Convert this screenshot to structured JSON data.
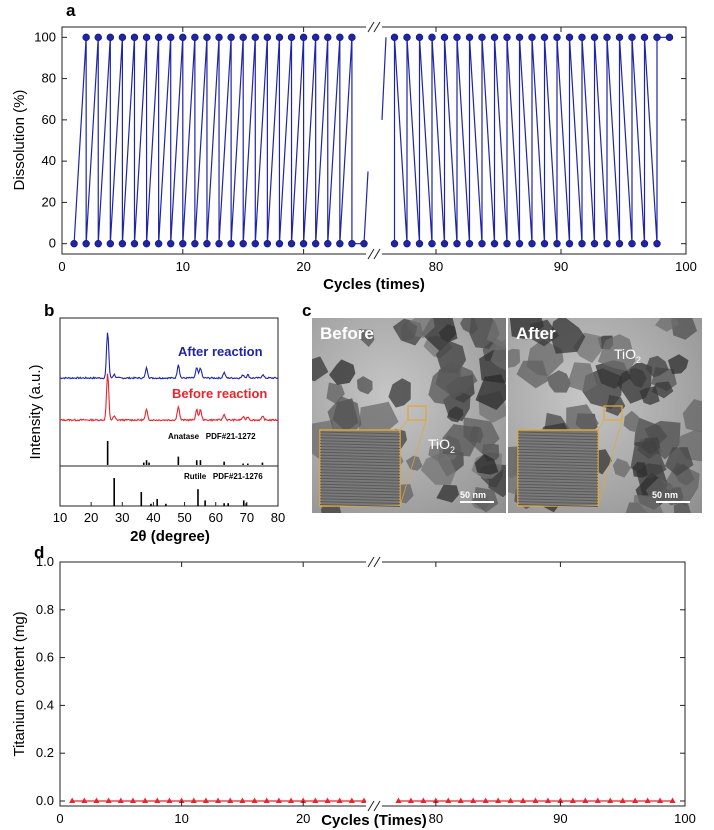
{
  "panels": {
    "a": "a",
    "b": "b",
    "c": "c",
    "d": "d"
  },
  "colors": {
    "blue": "#1f24a8",
    "red": "#e8252c",
    "black": "#000000",
    "inset_border": "#e0a73a"
  },
  "chart_data": [
    {
      "panel": "a",
      "type": "line",
      "xlabel": "Cycles (times)",
      "ylabel": "Dissolution (%)",
      "broken_x_axis": true,
      "segments": [
        {
          "xlim": [
            0,
            25
          ],
          "xticks": [
            0,
            10,
            20
          ]
        },
        {
          "xlim": [
            76,
            100
          ],
          "xticks": [
            80,
            90,
            100
          ]
        }
      ],
      "ylim": [
        -5,
        105
      ],
      "yticks": [
        0,
        20,
        40,
        60,
        80,
        100
      ],
      "series": [
        {
          "description": "sawtooth: points at 0 (x = 1,2,...) and 100 (x = 2,3,...)",
          "x_bottom_seg1": [
            1,
            2,
            3,
            4,
            5,
            6,
            7,
            8,
            9,
            10,
            11,
            12,
            13,
            14,
            15,
            16,
            17,
            18,
            19,
            20,
            21,
            22,
            23,
            24,
            25
          ],
          "x_top_seg1": [
            2,
            3,
            4,
            5,
            6,
            7,
            8,
            9,
            10,
            11,
            12,
            13,
            14,
            15,
            16,
            17,
            18,
            19,
            20,
            21,
            22,
            23,
            24
          ],
          "x_bottom_seg2": [
            77,
            78,
            79,
            80,
            81,
            82,
            83,
            84,
            85,
            86,
            87,
            88,
            89,
            90,
            91,
            92,
            93,
            94,
            95,
            96,
            97,
            98
          ],
          "x_top_seg2": [
            77,
            78,
            79,
            80,
            81,
            82,
            83,
            84,
            85,
            86,
            87,
            88,
            89,
            90,
            91,
            92,
            93,
            94,
            95,
            96,
            97,
            98,
            99
          ],
          "low": 0,
          "high": 100
        }
      ]
    },
    {
      "panel": "b",
      "type": "line",
      "xlabel": "2θ (degree)",
      "ylabel": "Intensity (a.u.)",
      "xlim": [
        10,
        80
      ],
      "xticks": [
        10,
        20,
        30,
        40,
        50,
        60,
        70,
        80
      ],
      "series": [
        {
          "name": "After reaction",
          "peaks": [
            [
              25.3,
              1.0
            ],
            [
              27.4,
              0.08
            ],
            [
              37.8,
              0.22
            ],
            [
              48.0,
              0.3
            ],
            [
              53.9,
              0.22
            ],
            [
              55.1,
              0.22
            ],
            [
              62.7,
              0.12
            ],
            [
              68.8,
              0.07
            ],
            [
              70.3,
              0.07
            ],
            [
              75.1,
              0.07
            ]
          ]
        },
        {
          "name": "Before reaction",
          "peaks": [
            [
              25.3,
              1.0
            ],
            [
              27.4,
              0.08
            ],
            [
              37.8,
              0.22
            ],
            [
              48.0,
              0.3
            ],
            [
              53.9,
              0.22
            ],
            [
              55.1,
              0.22
            ],
            [
              62.7,
              0.12
            ],
            [
              68.8,
              0.07
            ],
            [
              70.3,
              0.07
            ],
            [
              75.1,
              0.07
            ]
          ]
        },
        {
          "name": "Anatase PDF#21-1272",
          "sticks": [
            [
              25.3,
              1.0
            ],
            [
              36.9,
              0.1
            ],
            [
              37.8,
              0.2
            ],
            [
              38.6,
              0.1
            ],
            [
              48.0,
              0.35
            ],
            [
              53.9,
              0.2
            ],
            [
              55.1,
              0.2
            ],
            [
              62.7,
              0.14
            ],
            [
              68.8,
              0.06
            ],
            [
              70.3,
              0.06
            ],
            [
              75.0,
              0.1
            ]
          ]
        },
        {
          "name": "Rutile PDF#21-1276",
          "sticks": [
            [
              27.4,
              1.0
            ],
            [
              36.1,
              0.5
            ],
            [
              39.2,
              0.08
            ],
            [
              41.2,
              0.25
            ],
            [
              44.0,
              0.08
            ],
            [
              54.3,
              0.6
            ],
            [
              56.6,
              0.2
            ],
            [
              62.7,
              0.1
            ],
            [
              64.0,
              0.1
            ],
            [
              69.0,
              0.2
            ],
            [
              69.8,
              0.1
            ]
          ]
        }
      ],
      "labels": {
        "after": "After reaction",
        "before": "Before reaction",
        "anatase": "Anatase   PDF#21-1272",
        "rutile": "Rutile   PDF#21-1276"
      }
    },
    {
      "panel": "d",
      "type": "scatter",
      "xlabel": "Cycles (Times)",
      "ylabel": "Titanium content (mg)",
      "broken_x_axis": true,
      "segments": [
        {
          "xlim": [
            0,
            25
          ],
          "xticks": [
            0,
            10,
            20
          ]
        },
        {
          "xlim": [
            76,
            100
          ],
          "xticks": [
            80,
            90,
            100
          ]
        }
      ],
      "ylim": [
        0,
        1.0
      ],
      "yticks": [
        "0.0",
        "0.2",
        "0.4",
        "0.6",
        "0.8",
        "1.0"
      ],
      "series": [
        {
          "x_seg1": [
            1,
            2,
            3,
            4,
            5,
            6,
            7,
            8,
            9,
            10,
            11,
            12,
            13,
            14,
            15,
            16,
            17,
            18,
            19,
            20,
            21,
            22,
            23,
            24,
            25
          ],
          "x_seg2": [
            77,
            78,
            79,
            80,
            81,
            82,
            83,
            84,
            85,
            86,
            87,
            88,
            89,
            90,
            91,
            92,
            93,
            94,
            95,
            96,
            97,
            98,
            99
          ],
          "value": 0.0
        }
      ]
    }
  ],
  "tem": {
    "before": {
      "title": "Before",
      "label": "TiO",
      "sub": "2",
      "scale": "50 nm"
    },
    "after": {
      "title": "After",
      "label": "TiO",
      "sub": "2",
      "scale": "50 nm"
    }
  }
}
